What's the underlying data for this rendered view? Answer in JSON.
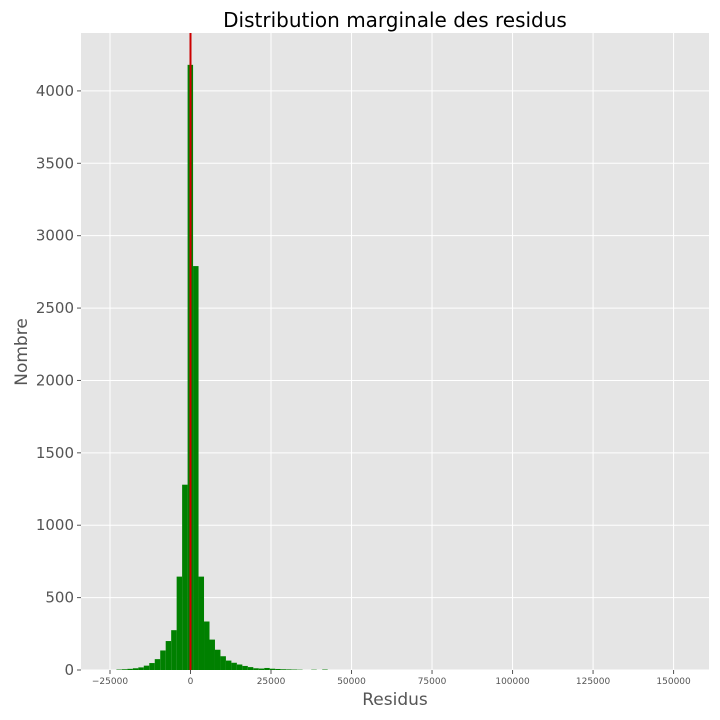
{
  "chart_data": {
    "type": "bar",
    "title": "Distribution marginale des residus",
    "xlabel": "Residus",
    "ylabel": "Nombre",
    "xlim": [
      -34000,
      161000
    ],
    "ylim": [
      0,
      4400
    ],
    "xticks": [
      -25000,
      0,
      25000,
      50000,
      75000,
      100000,
      125000,
      150000
    ],
    "xtick_labels": [
      "−25000",
      "0",
      "25000",
      "50000",
      "75000",
      "100000",
      "125000",
      "150000"
    ],
    "yticks": [
      0,
      500,
      1000,
      1500,
      2000,
      2500,
      3000,
      3500,
      4000
    ],
    "ytick_labels": [
      "0",
      "500",
      "1000",
      "1500",
      "2000",
      "2500",
      "3000",
      "3500",
      "4000"
    ],
    "grid": true,
    "bar_color": "#008000",
    "background": "#e5e5e5",
    "grid_color": "#ffffff",
    "vline": {
      "x": 0,
      "color": "#cc0000"
    },
    "bins": [
      {
        "x0": -23000,
        "x1": -21300,
        "value": 3
      },
      {
        "x0": -21300,
        "x1": -19600,
        "value": 5
      },
      {
        "x0": -19600,
        "x1": -17900,
        "value": 8
      },
      {
        "x0": -17900,
        "x1": -16200,
        "value": 12
      },
      {
        "x0": -16200,
        "x1": -14500,
        "value": 18
      },
      {
        "x0": -14500,
        "x1": -12800,
        "value": 30
      },
      {
        "x0": -12800,
        "x1": -11100,
        "value": 48
      },
      {
        "x0": -11100,
        "x1": -9400,
        "value": 75
      },
      {
        "x0": -9400,
        "x1": -7700,
        "value": 135
      },
      {
        "x0": -7700,
        "x1": -6000,
        "value": 200
      },
      {
        "x0": -6000,
        "x1": -4300,
        "value": 275
      },
      {
        "x0": -4300,
        "x1": -2600,
        "value": 645
      },
      {
        "x0": -2600,
        "x1": -900,
        "value": 1280
      },
      {
        "x0": -900,
        "x1": 800,
        "value": 4180
      },
      {
        "x0": 800,
        "x1": 2500,
        "value": 2790
      },
      {
        "x0": 2500,
        "x1": 4200,
        "value": 645
      },
      {
        "x0": 4200,
        "x1": 5900,
        "value": 335
      },
      {
        "x0": 5900,
        "x1": 7600,
        "value": 210
      },
      {
        "x0": 7600,
        "x1": 9300,
        "value": 140
      },
      {
        "x0": 9300,
        "x1": 11000,
        "value": 95
      },
      {
        "x0": 11000,
        "x1": 12700,
        "value": 65
      },
      {
        "x0": 12700,
        "x1": 14400,
        "value": 50
      },
      {
        "x0": 14400,
        "x1": 16100,
        "value": 38
      },
      {
        "x0": 16100,
        "x1": 17800,
        "value": 28
      },
      {
        "x0": 17800,
        "x1": 19500,
        "value": 20
      },
      {
        "x0": 19500,
        "x1": 21200,
        "value": 12
      },
      {
        "x0": 21200,
        "x1": 22900,
        "value": 10
      },
      {
        "x0": 22900,
        "x1": 24600,
        "value": 14
      },
      {
        "x0": 24600,
        "x1": 26300,
        "value": 9
      },
      {
        "x0": 26300,
        "x1": 28000,
        "value": 7
      },
      {
        "x0": 28000,
        "x1": 29700,
        "value": 5
      },
      {
        "x0": 29700,
        "x1": 31400,
        "value": 4
      },
      {
        "x0": 31400,
        "x1": 33100,
        "value": 3
      },
      {
        "x0": 33100,
        "x1": 34800,
        "value": 2
      },
      {
        "x0": 37500,
        "x1": 39200,
        "value": 2
      },
      {
        "x0": 40900,
        "x1": 42600,
        "value": 3
      }
    ]
  }
}
